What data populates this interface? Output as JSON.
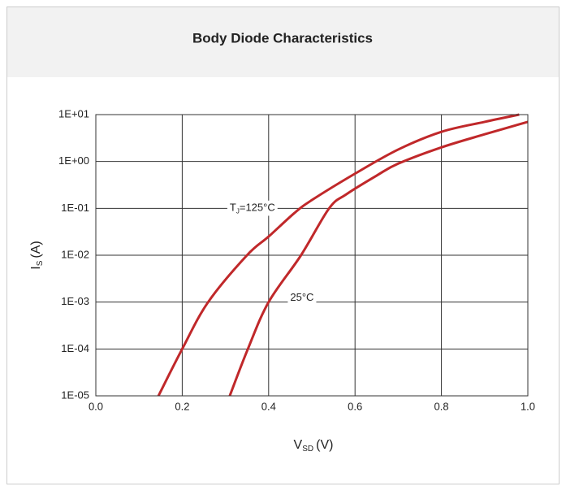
{
  "chart_data": {
    "type": "line",
    "title": "Body Diode Characteristics",
    "xlabel": "V",
    "xlabel_sub": "SD",
    "xlabel_unit": "(V)",
    "ylabel": "I",
    "ylabel_sub": "S",
    "ylabel_unit": "(A)",
    "annotations": [
      {
        "text": "T",
        "sub": "J",
        "rest": "=125°C",
        "x": 0.31,
        "y": 0.1
      },
      {
        "text": "25°C",
        "x": 0.45,
        "y": 0.0012
      }
    ],
    "log_y": true,
    "grid": true,
    "xlim": [
      0,
      1
    ],
    "xticks": [
      {
        "value": 0,
        "label": "0.0"
      },
      0.2,
      0.4,
      0.6,
      0.8,
      {
        "value": 1,
        "label": "1.0"
      }
    ],
    "ylim": [
      1e-05,
      10
    ],
    "yticks": [
      {
        "value": 10,
        "label": "1E+01"
      },
      {
        "value": 1,
        "label": "1E+00"
      },
      {
        "value": 0.1,
        "label": "1E-01"
      },
      {
        "value": 0.01,
        "label": "1E-02"
      },
      {
        "value": 0.001,
        "label": "1E-03"
      },
      {
        "value": 0.0001,
        "label": "1E-04"
      },
      {
        "value": 1e-05,
        "label": "1E-05"
      }
    ],
    "series": [
      {
        "name": "125°C",
        "color": "#c0282a",
        "x": [
          0.145,
          0.2,
          0.26,
          0.35,
          0.4,
          0.46,
          0.5,
          0.6,
          0.7,
          0.8,
          0.9,
          0.98
        ],
        "values": [
          1e-05,
          0.0001,
          0.001,
          0.01,
          0.025,
          0.08,
          0.15,
          0.55,
          1.8,
          4.3,
          7,
          10
        ]
      },
      {
        "name": "25°C",
        "color": "#c0282a",
        "x": [
          0.31,
          0.352,
          0.4,
          0.475,
          0.54,
          0.58,
          0.65,
          0.7,
          0.8,
          0.9,
          1.0
        ],
        "values": [
          1e-05,
          0.0001,
          0.001,
          0.01,
          0.1,
          0.2,
          0.5,
          0.9,
          2,
          3.8,
          7
        ]
      }
    ]
  }
}
